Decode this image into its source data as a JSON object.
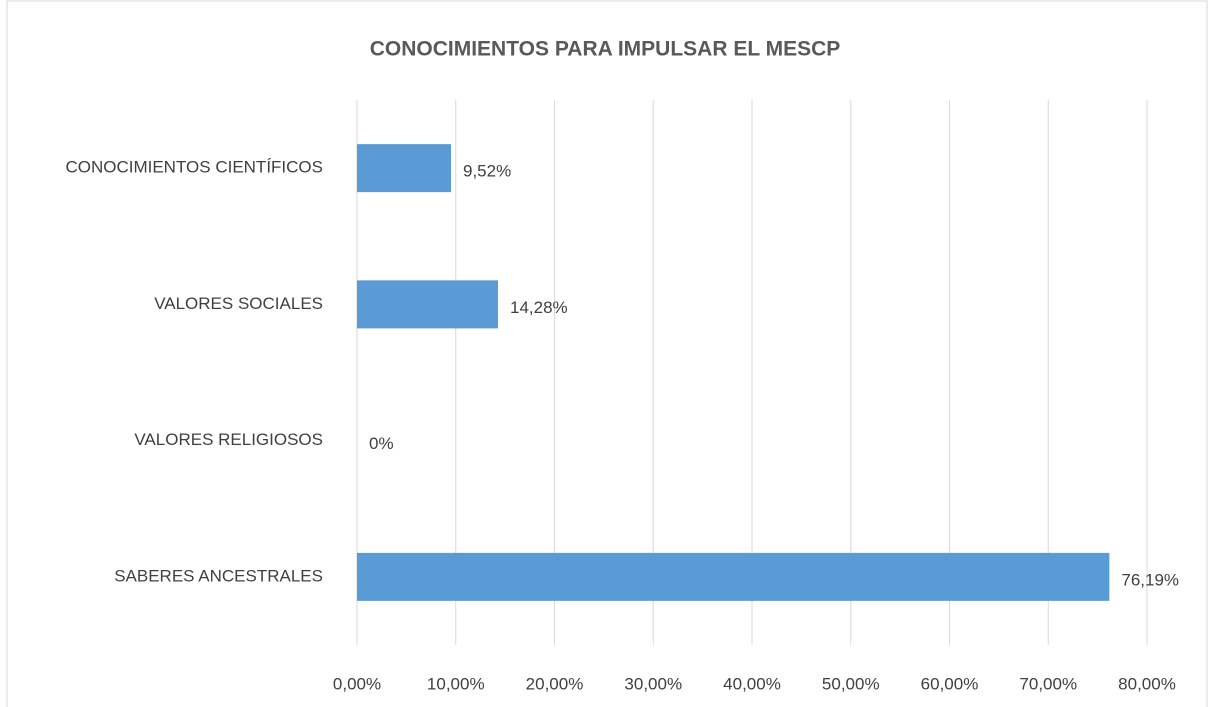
{
  "chart_data": {
    "type": "hbar",
    "title": "CONOCIMIENTOS PARA IMPULSAR EL MESCP",
    "categories": [
      "CONOCIMIENTOS CIENTÍFICOS",
      "VALORES SOCIALES",
      "VALORES RELIGIOSOS",
      "SABERES ANCESTRALES"
    ],
    "values": [
      9.52,
      14.28,
      0,
      76.19
    ],
    "value_labels": [
      "9,52%",
      "14,28%",
      "0%",
      "76,19%"
    ],
    "color": "#5b9bd5",
    "xlim": [
      0,
      80
    ],
    "xticks": [
      {
        "value": 0,
        "label": "0,00%"
      },
      {
        "value": 10,
        "label": "10,00%"
      },
      {
        "value": 20,
        "label": "20,00%"
      },
      {
        "value": 30,
        "label": "30,00%"
      },
      {
        "value": 40,
        "label": "40,00%"
      },
      {
        "value": 50,
        "label": "50,00%"
      },
      {
        "value": 60,
        "label": "60,00%"
      },
      {
        "value": 70,
        "label": "70,00%"
      },
      {
        "value": 80,
        "label": "80,00%"
      }
    ],
    "grid": true
  }
}
